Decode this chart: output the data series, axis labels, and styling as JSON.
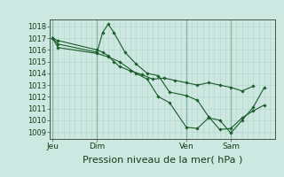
{
  "bg_color": "#cce8e0",
  "grid_color_minor": "#b8d8d0",
  "grid_color_major": "#88b8a8",
  "line_color": "#1a5c2a",
  "marker_color": "#1a5c2a",
  "xlabel": "Pression niveau de la mer( hPa )",
  "xlabel_fontsize": 8,
  "yticks": [
    1009,
    1010,
    1011,
    1012,
    1013,
    1014,
    1015,
    1016,
    1017,
    1018
  ],
  "ylim": [
    1008.4,
    1018.6
  ],
  "xtick_labels": [
    "Jeu",
    "Dim",
    "Ven",
    "Sam"
  ],
  "xtick_positions": [
    0,
    16,
    48,
    64
  ],
  "xlim": [
    -1,
    80
  ],
  "vline_positions": [
    0,
    16,
    48,
    64
  ],
  "series": [
    {
      "x": [
        0,
        2,
        16,
        18,
        20,
        22,
        24,
        28,
        32,
        36,
        40,
        44,
        48,
        52,
        56,
        60,
        64,
        68,
        72
      ],
      "y": [
        1017.0,
        1016.8,
        1016.0,
        1015.8,
        1015.5,
        1015.0,
        1014.6,
        1014.2,
        1013.9,
        1013.5,
        1013.6,
        1013.4,
        1013.2,
        1013.0,
        1013.2,
        1013.0,
        1012.8,
        1012.5,
        1012.9
      ]
    },
    {
      "x": [
        0,
        2,
        16,
        18,
        20,
        22,
        26,
        30,
        34,
        38,
        42,
        48,
        52,
        56,
        60,
        64,
        68,
        72,
        76
      ],
      "y": [
        1017.0,
        1016.5,
        1015.8,
        1017.5,
        1018.2,
        1017.5,
        1015.8,
        1014.8,
        1014.0,
        1013.8,
        1012.4,
        1012.1,
        1011.7,
        1010.3,
        1009.2,
        1009.3,
        1010.2,
        1010.8,
        1011.3
      ]
    },
    {
      "x": [
        0,
        2,
        16,
        20,
        24,
        30,
        34,
        38,
        42,
        48,
        52,
        56,
        60,
        64,
        68,
        72,
        76
      ],
      "y": [
        1017.0,
        1016.2,
        1015.7,
        1015.4,
        1015.0,
        1014.0,
        1013.5,
        1012.0,
        1011.5,
        1009.4,
        1009.3,
        1010.2,
        1010.0,
        1008.9,
        1010.0,
        1011.1,
        1012.8
      ]
    }
  ]
}
